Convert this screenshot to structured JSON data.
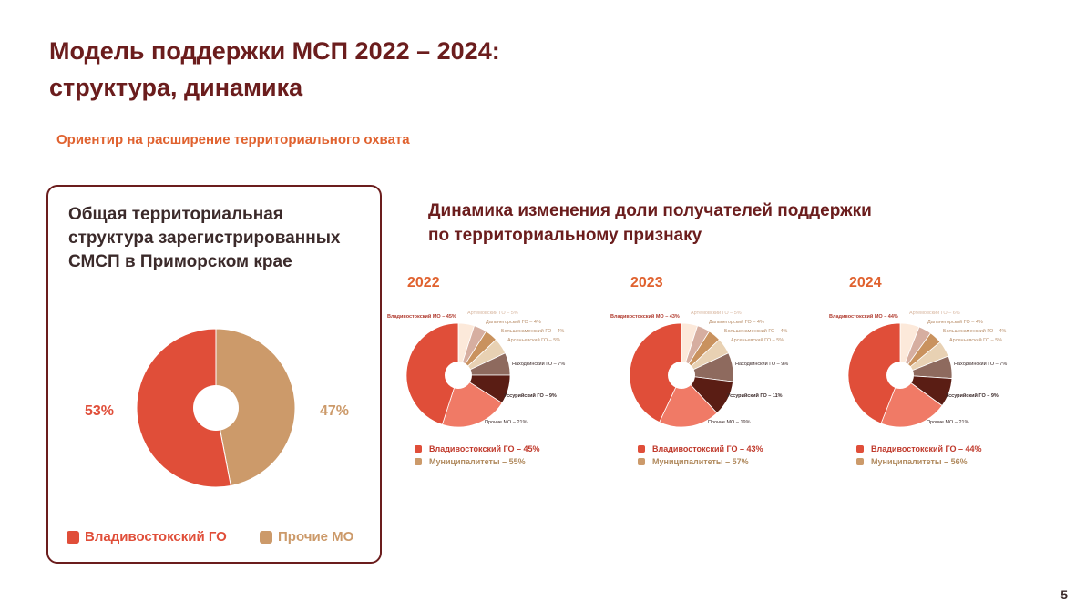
{
  "slide": {
    "title_line1": "Модель поддержки МСП 2022 – 2024:",
    "title_line2": "структура, динамика",
    "subtitle": "Ориентир на расширение территориального охвата",
    "page_number": "5"
  },
  "colors": {
    "vlad": "#e04e39",
    "other": "#cc9a6a",
    "title": "#6b1d1d",
    "accent": "#e0622f"
  },
  "chart_data": [
    {
      "type": "pie",
      "title": "Общая территориальная структура зарегистрированных СМСП в Приморском крае",
      "slices": [
        {
          "label": "Владивостокский ГО",
          "value": 53,
          "value_label": "53%",
          "color": "#e04e39"
        },
        {
          "label": "Прочие МО",
          "value": 47,
          "value_label": "47%",
          "color": "#cc9a6a"
        }
      ],
      "legend": [
        {
          "label": "Владивостокский ГО",
          "color": "#e04e39"
        },
        {
          "label": "Прочие МО",
          "color": "#cc9a6a"
        }
      ],
      "legend_position": "bottom"
    },
    {
      "type": "pie",
      "section_title": "Динамика изменения доли получателей поддержки по территориальному признаку",
      "title": "2022",
      "slices": [
        {
          "label": "Владивостокский МО – 45%",
          "value": 45,
          "color": "#e04e39"
        },
        {
          "label": "Прочие МО – 21%",
          "value": 21,
          "color": "#f07a66"
        },
        {
          "label": "Уссурийский ГО – 9%",
          "value": 9,
          "color": "#5a1d14"
        },
        {
          "label": "Находкинский ГО – 7%",
          "value": 7,
          "color": "#8e6a5e"
        },
        {
          "label": "Арсеньевский ГО – 5%",
          "value": 5,
          "color": "#e8d1b3"
        },
        {
          "label": "Большекаменский ГО – 4%",
          "value": 4,
          "color": "#c9925e"
        },
        {
          "label": "Дальнегорский ГО – 4%",
          "value": 4,
          "color": "#d6aea0"
        },
        {
          "label": "Артемовский ГО – 5%",
          "value": 5,
          "color": "#fce9da"
        }
      ],
      "legend": [
        {
          "label": "Владивостокский ГО – 45%",
          "color": "#e04e39"
        },
        {
          "label": "Муниципалитеты – 55%",
          "color": "#cc9a6a"
        }
      ]
    },
    {
      "type": "pie",
      "title": "2023",
      "slices": [
        {
          "label": "Владивостокский МО – 43%",
          "value": 43,
          "color": "#e04e39"
        },
        {
          "label": "Прочие МО – 19%",
          "value": 19,
          "color": "#f07a66"
        },
        {
          "label": "Уссурийский ГО – 11%",
          "value": 11,
          "color": "#5a1d14"
        },
        {
          "label": "Находкинский ГО – 9%",
          "value": 9,
          "color": "#8e6a5e"
        },
        {
          "label": "Арсеньевский ГО – 5%",
          "value": 5,
          "color": "#e8d1b3"
        },
        {
          "label": "Большекаменский ГО – 4%",
          "value": 4,
          "color": "#c9925e"
        },
        {
          "label": "Дальнегорский ГО – 4%",
          "value": 4,
          "color": "#d6aea0"
        },
        {
          "label": "Артемовский ГО – 5%",
          "value": 5,
          "color": "#fce9da"
        }
      ],
      "legend": [
        {
          "label": "Владивостокский ГО – 43%",
          "color": "#e04e39"
        },
        {
          "label": "Муниципалитеты – 57%",
          "color": "#cc9a6a"
        }
      ]
    },
    {
      "type": "pie",
      "title": "2024",
      "slices": [
        {
          "label": "Владивостокский МО – 44%",
          "value": 44,
          "color": "#e04e39"
        },
        {
          "label": "Прочие МО – 21%",
          "value": 21,
          "color": "#f07a66"
        },
        {
          "label": "Уссурийский ГО – 9%",
          "value": 9,
          "color": "#5a1d14"
        },
        {
          "label": "Находкинский ГО – 7%",
          "value": 7,
          "color": "#8e6a5e"
        },
        {
          "label": "Арсеньевский ГО – 5%",
          "value": 5,
          "color": "#e8d1b3"
        },
        {
          "label": "Большекаменский ГО – 4%",
          "value": 4,
          "color": "#c9925e"
        },
        {
          "label": "Дальнегорский ГО – 4%",
          "value": 4,
          "color": "#d6aea0"
        },
        {
          "label": "Артемовский ГО – 6%",
          "value": 6,
          "color": "#fce9da"
        }
      ],
      "legend": [
        {
          "label": "Владивостокский ГО – 44%",
          "color": "#e04e39"
        },
        {
          "label": "Муниципалитеты – 56%",
          "color": "#cc9a6a"
        }
      ]
    }
  ]
}
